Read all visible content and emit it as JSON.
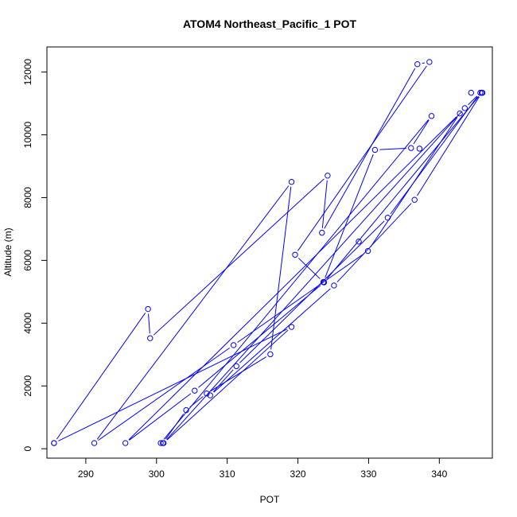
{
  "chart_data": {
    "type": "line",
    "title": "ATOM4 Northeast_Pacific_1 POT",
    "xlabel": "POT",
    "ylabel": "Altitude (m)",
    "xlim": [
      284.5,
      347.5
    ],
    "ylim": [
      -300,
      12800
    ],
    "xticks": [
      290,
      300,
      310,
      320,
      330,
      340
    ],
    "yticks": [
      0,
      2000,
      4000,
      6000,
      8000,
      10000,
      12000
    ],
    "grid": false,
    "legend": "none",
    "series_color": "#0000ff",
    "series": [
      {
        "x": [
          285.5,
          298.8,
          299.1,
          324.2,
          323.4,
          336.9,
          338.6,
          319.6,
          323.6,
          330.9,
          336.0,
          338.9,
          300.6,
          300.9,
          304.2,
          307.1,
          316.1,
          319.1,
          291.2,
          310.9,
          329.9,
          342.9,
          295.6,
          305.4,
          323.7,
          346.0,
          336.5,
          325.1,
          307.6,
          311.3,
          332.7,
          345.8,
          343.6,
          301.0,
          319.1,
          285.5
        ],
        "y": [
          180,
          4450,
          3520,
          8700,
          6880,
          12250,
          12320,
          6180,
          5310,
          9520,
          9580,
          10600,
          180,
          180,
          1230,
          1760,
          3010,
          8500,
          180,
          3300,
          6300,
          10680,
          180,
          1850,
          5300,
          11340,
          7930,
          5200,
          1700,
          2630,
          7360,
          11340,
          10850,
          180,
          3880,
          180
        ]
      }
    ],
    "extra_points": [
      {
        "x": 337.2,
        "y": 9560
      },
      {
        "x": 328.6,
        "y": 6600
      },
      {
        "x": 344.5,
        "y": 11340
      },
      {
        "x": 346.1,
        "y": 11340
      }
    ]
  }
}
